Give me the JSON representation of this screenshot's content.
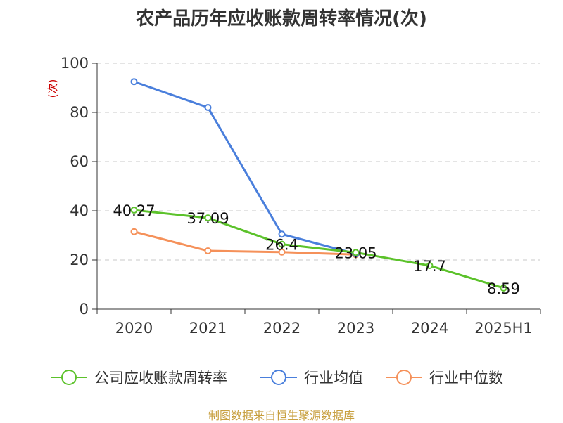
{
  "chart_data": {
    "type": "line",
    "title": "农产品历年应收账款周转率情况(次)",
    "ylabel": "(次)",
    "ylim": [
      0,
      100
    ],
    "yticks": [
      0,
      20,
      40,
      60,
      80,
      100
    ],
    "categories": [
      "2020",
      "2021",
      "2022",
      "2023",
      "2024",
      "2025H1"
    ],
    "grid": true,
    "legend_position": "bottom",
    "series": [
      {
        "name": "公司应收账款周转率",
        "color": "#5cc22b",
        "values": [
          40.27,
          37.09,
          26.4,
          23.05,
          17.7,
          8.59
        ],
        "labels": [
          "40.27",
          "37.09",
          "26.4",
          "23.05",
          "17.7",
          "8.59"
        ]
      },
      {
        "name": "行业均值",
        "color": "#4a7fdc",
        "values": [
          92.5,
          82.0,
          30.5,
          22.5,
          null,
          null
        ]
      },
      {
        "name": "行业中位数",
        "color": "#f5915a",
        "values": [
          31.5,
          23.7,
          23.2,
          22.2,
          null,
          null
        ]
      }
    ]
  },
  "source": "制图数据来自恒生聚源数据库"
}
